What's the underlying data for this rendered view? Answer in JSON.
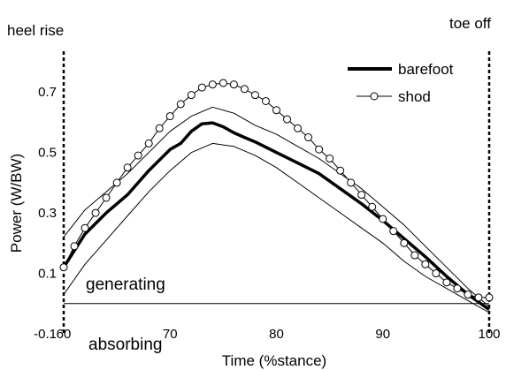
{
  "chart_data": {
    "type": "line",
    "xlabel": "Time (%stance)",
    "ylabel": "Power (W/BW)",
    "xlim": [
      60,
      100
    ],
    "ylim": [
      -0.1,
      0.8
    ],
    "xticks": [
      "60",
      "70",
      "80",
      "90",
      "100"
    ],
    "xtick_values": [
      60,
      70,
      80,
      90,
      100
    ],
    "yticks": [
      "-0.1",
      "0.1",
      "0.3",
      "0.5",
      "0.7"
    ],
    "ytick_values": [
      -0.1,
      0.1,
      0.3,
      0.5,
      0.7
    ],
    "grid": false,
    "legend_position": "top-right",
    "annotations": {
      "heel_rise": "heel rise",
      "toe_off": "toe off",
      "generating": "generating",
      "absorbing": "absorbing"
    },
    "events": [
      {
        "label": "heel rise",
        "x": 60
      },
      {
        "label": "toe off",
        "x": 100
      }
    ],
    "series": [
      {
        "name": "barefoot",
        "style": "thick-line",
        "color": "#000000",
        "x": [
          60,
          62,
          64,
          66,
          68,
          70,
          71,
          72,
          73,
          74,
          75,
          76,
          77,
          78,
          80,
          82,
          84,
          86,
          88,
          90,
          92,
          94,
          96,
          98,
          100
        ],
        "y": [
          0.12,
          0.23,
          0.3,
          0.36,
          0.44,
          0.51,
          0.53,
          0.57,
          0.595,
          0.598,
          0.585,
          0.565,
          0.55,
          0.535,
          0.5,
          0.465,
          0.43,
          0.38,
          0.33,
          0.275,
          0.215,
          0.155,
          0.09,
          0.03,
          -0.02
        ]
      },
      {
        "name": "barefoot upper SD",
        "style": "thin-line",
        "color": "#000000",
        "x": [
          60,
          62,
          64,
          66,
          68,
          70,
          72,
          74,
          76,
          78,
          80,
          82,
          84,
          86,
          88,
          90,
          92,
          94,
          96,
          98,
          100
        ],
        "y": [
          0.22,
          0.31,
          0.37,
          0.43,
          0.5,
          0.57,
          0.62,
          0.65,
          0.63,
          0.59,
          0.56,
          0.52,
          0.48,
          0.43,
          0.38,
          0.32,
          0.26,
          0.19,
          0.12,
          0.05,
          -0.01
        ]
      },
      {
        "name": "barefoot lower SD",
        "style": "thin-line",
        "color": "#000000",
        "x": [
          60,
          62,
          64,
          66,
          68,
          70,
          72,
          74,
          76,
          78,
          80,
          82,
          84,
          86,
          88,
          90,
          92,
          94,
          96,
          98,
          100
        ],
        "y": [
          0.03,
          0.13,
          0.21,
          0.29,
          0.37,
          0.44,
          0.5,
          0.53,
          0.52,
          0.49,
          0.45,
          0.4,
          0.35,
          0.3,
          0.25,
          0.2,
          0.14,
          0.09,
          0.05,
          0.01,
          -0.03
        ]
      },
      {
        "name": "shod",
        "style": "line-circle",
        "color": "#000000",
        "x": [
          60,
          61,
          62,
          63,
          64,
          65,
          66,
          67,
          68,
          69,
          70,
          71,
          72,
          73,
          74,
          75,
          76,
          77,
          78,
          79,
          80,
          81,
          82,
          83,
          84,
          85,
          86,
          87,
          88,
          89,
          90,
          91,
          92,
          93,
          94,
          95,
          96,
          97,
          98,
          99,
          100
        ],
        "y": [
          0.12,
          0.19,
          0.25,
          0.3,
          0.35,
          0.4,
          0.45,
          0.49,
          0.53,
          0.58,
          0.62,
          0.66,
          0.69,
          0.715,
          0.725,
          0.73,
          0.725,
          0.71,
          0.69,
          0.67,
          0.64,
          0.61,
          0.58,
          0.55,
          0.51,
          0.48,
          0.44,
          0.4,
          0.36,
          0.32,
          0.28,
          0.24,
          0.2,
          0.16,
          0.13,
          0.1,
          0.07,
          0.05,
          0.03,
          0.02,
          0.02
        ]
      }
    ]
  }
}
